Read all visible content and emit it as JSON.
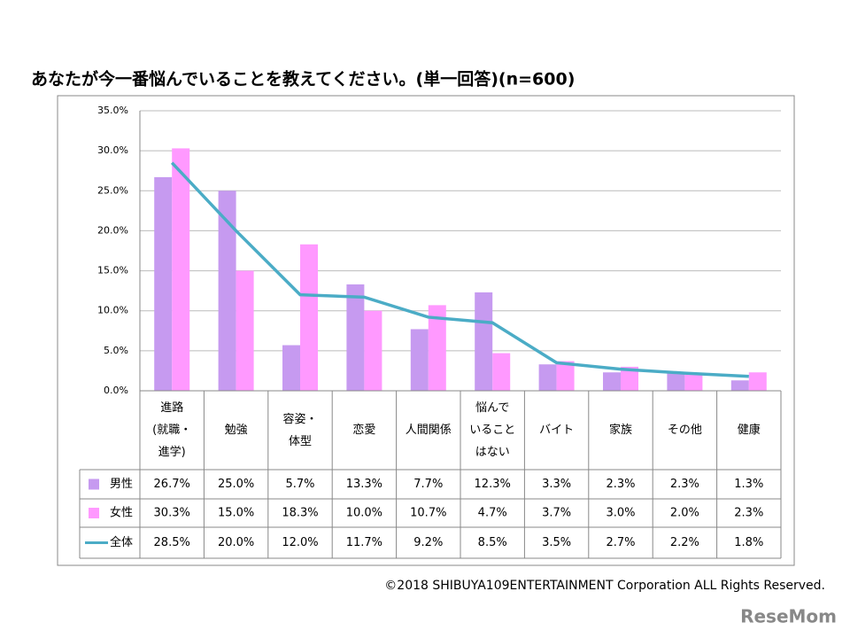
{
  "chart_data": {
    "type": "bar-line",
    "title": "あなたが今一番悩んでいることを教えてください。(単一回答)(n=600)",
    "categories": [
      "進路\n(就職・\n進学)",
      "勉強",
      "容姿・\n体型",
      "恋愛",
      "人間関係",
      "悩んで\nいること\nはない",
      "バイト",
      "家族",
      "その他",
      "健康"
    ],
    "series": [
      {
        "name": "男性",
        "color": "#c69af0",
        "kind": "bar",
        "values": [
          26.7,
          25.0,
          5.7,
          13.3,
          7.7,
          12.3,
          3.3,
          2.3,
          2.3,
          1.3
        ],
        "value_labels": [
          "26.7%",
          "25.0%",
          "5.7%",
          "13.3%",
          "7.7%",
          "12.3%",
          "3.3%",
          "2.3%",
          "2.3%",
          "1.3%"
        ]
      },
      {
        "name": "女性",
        "color": "#ff99ff",
        "kind": "bar",
        "values": [
          30.3,
          15.0,
          18.3,
          10.0,
          10.7,
          4.7,
          3.7,
          3.0,
          2.0,
          2.3
        ],
        "value_labels": [
          "30.3%",
          "15.0%",
          "18.3%",
          "10.0%",
          "10.7%",
          "4.7%",
          "3.7%",
          "3.0%",
          "2.0%",
          "2.3%"
        ]
      },
      {
        "name": "全体",
        "color": "#4bacc6",
        "kind": "line",
        "values": [
          28.5,
          20.0,
          12.0,
          11.7,
          9.2,
          8.5,
          3.5,
          2.7,
          2.2,
          1.8
        ],
        "value_labels": [
          "28.5%",
          "20.0%",
          "12.0%",
          "11.7%",
          "9.2%",
          "8.5%",
          "3.5%",
          "2.7%",
          "2.2%",
          "1.8%"
        ]
      }
    ],
    "ylim": [
      0,
      35
    ],
    "yticks": [
      {
        "value": 0,
        "label": "0.0%"
      },
      {
        "value": 5,
        "label": "5.0%"
      },
      {
        "value": 10,
        "label": "10.0%"
      },
      {
        "value": 15,
        "label": "15.0%"
      },
      {
        "value": 20,
        "label": "20.0%"
      },
      {
        "value": 25,
        "label": "25.0%"
      },
      {
        "value": 30,
        "label": "30.0%"
      },
      {
        "value": 35,
        "label": "35.0%"
      }
    ],
    "grid": true,
    "copyright": "©2018  SHIBUYA109ENTERTAINMENT Corporation  ALL Rights Reserved.",
    "watermark": "ReseMom"
  }
}
